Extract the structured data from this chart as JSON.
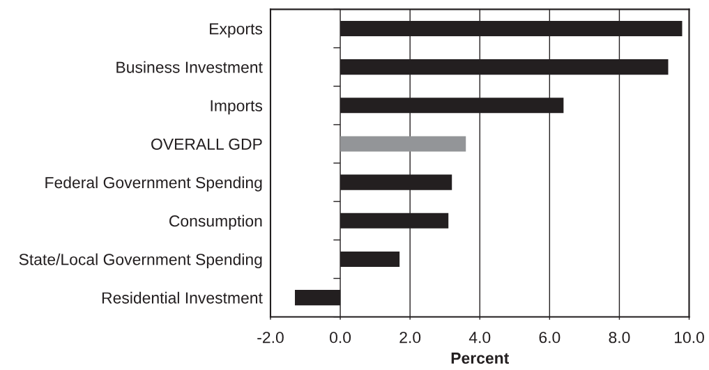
{
  "chart_data": {
    "type": "bar",
    "orientation": "horizontal",
    "categories": [
      "Exports",
      "Business Investment",
      "Imports",
      "OVERALL GDP",
      "Federal Government Spending",
      "Consumption",
      "State/Local Government Spending",
      "Residential Investment"
    ],
    "values": [
      9.8,
      9.4,
      6.4,
      3.6,
      3.2,
      3.1,
      1.7,
      -1.3
    ],
    "colors": [
      "#231f20",
      "#231f20",
      "#231f20",
      "#939598",
      "#231f20",
      "#231f20",
      "#231f20",
      "#231f20"
    ],
    "xlabel": "Percent",
    "xlim": [
      -2,
      10
    ],
    "xticks": [
      {
        "value": -2,
        "label": "-2.0"
      },
      {
        "value": 0,
        "label": "0.0"
      },
      {
        "value": 2,
        "label": "2.0"
      },
      {
        "value": 4,
        "label": "4.0"
      },
      {
        "value": 6,
        "label": "6.0"
      },
      {
        "value": 8,
        "label": "8.0"
      },
      {
        "value": 10,
        "label": "10.0"
      }
    ],
    "grid": "x"
  }
}
